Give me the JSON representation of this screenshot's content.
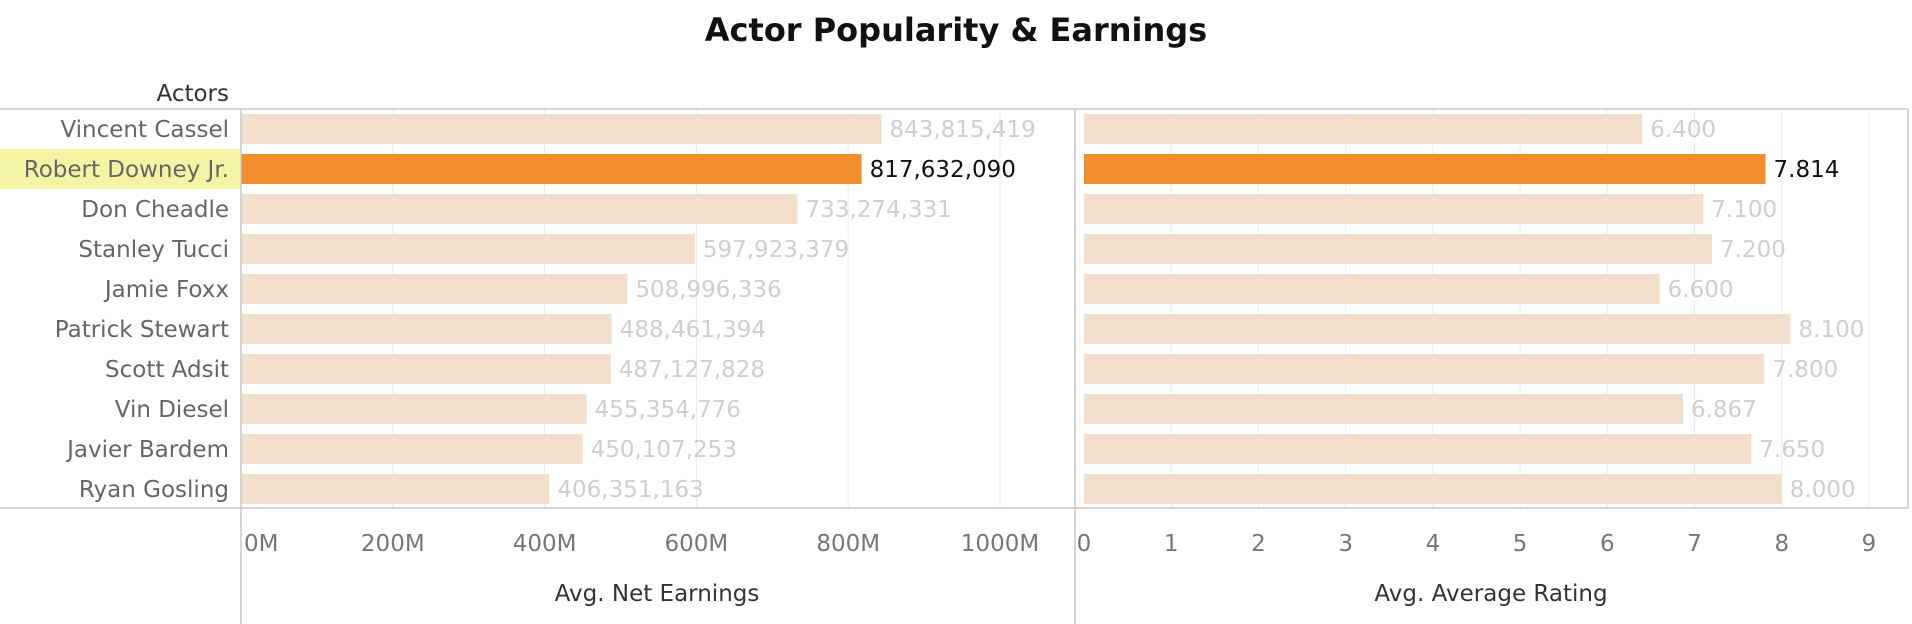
{
  "chart_data": {
    "title": "Actor Popularity & Earnings",
    "row_header": "Actors",
    "type": "bar",
    "orientation": "horizontal",
    "categories": [
      "Vincent Cassel",
      "Robert Downey Jr.",
      "Don Cheadle",
      "Stanley Tucci",
      "Jamie Foxx",
      "Patrick Stewart",
      "Scott Adsit",
      "Vin Diesel",
      "Javier Bardem",
      "Ryan Gosling"
    ],
    "highlighted": "Robert Downey Jr.",
    "colors": {
      "highlight_bar": "#f28e2b",
      "bar": "#f2e0cc",
      "label_highlight_bg": "#f4f5a4"
    },
    "panels": [
      {
        "xlabel": "Avg. Net Earnings",
        "xlim": [
          0,
          1100000000
        ],
        "ticks": [
          0,
          200000000,
          400000000,
          600000000,
          800000000,
          1000000000
        ],
        "tick_labels": [
          "0M",
          "200M",
          "400M",
          "600M",
          "800M",
          "1000M"
        ],
        "values": [
          843815419,
          817632090,
          733274331,
          597923379,
          508996336,
          488461394,
          487127828,
          455354776,
          450107253,
          406351163
        ],
        "value_labels": [
          "843,815,419",
          "817,632,090",
          "733,274,331",
          "597,923,379",
          "508,996,336",
          "488,461,394",
          "487,127,828",
          "455,354,776",
          "450,107,253",
          "406,351,163"
        ]
      },
      {
        "xlabel": "Avg. Average Rating",
        "xlim": [
          0,
          9.5
        ],
        "ticks": [
          0,
          1,
          2,
          3,
          4,
          5,
          6,
          7,
          8,
          9
        ],
        "tick_labels": [
          "0",
          "1",
          "2",
          "3",
          "4",
          "5",
          "6",
          "7",
          "8",
          "9"
        ],
        "values": [
          6.4,
          7.814,
          7.1,
          7.2,
          6.6,
          8.1,
          7.8,
          6.867,
          7.65,
          8.0
        ],
        "value_labels": [
          "6.400",
          "7.814",
          "7.100",
          "7.200",
          "6.600",
          "8.100",
          "7.800",
          "6.867",
          "7.650",
          "8.000"
        ]
      }
    ],
    "grid": true,
    "legend": "none"
  }
}
